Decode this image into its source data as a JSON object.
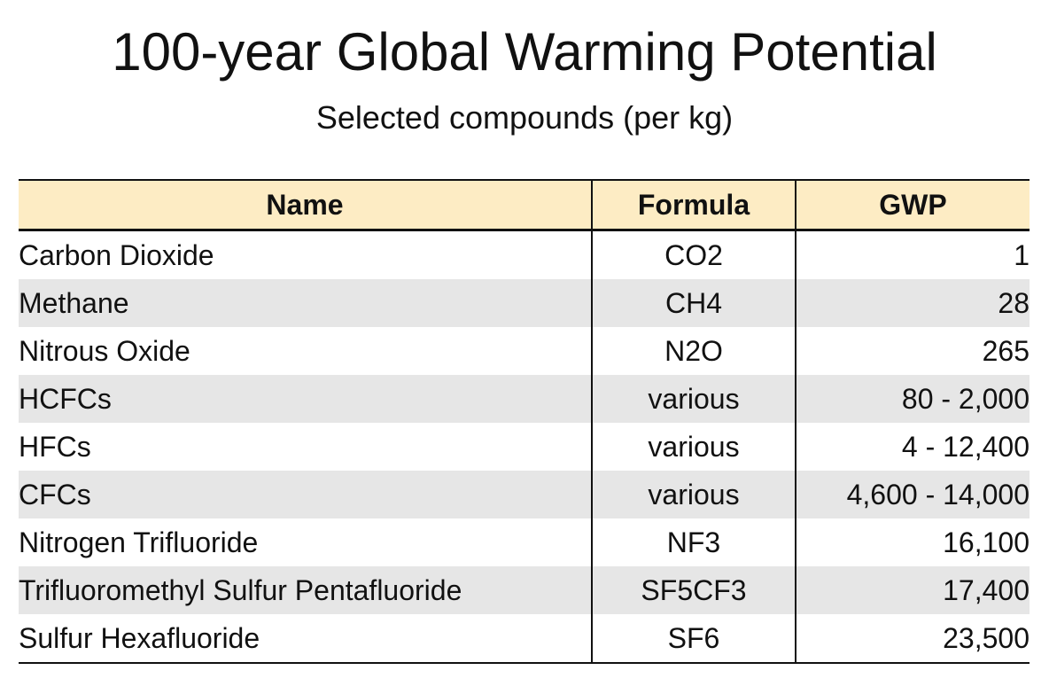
{
  "chart_data": {
    "type": "table",
    "title": "100-year Global Warming Potential",
    "subtitle": "Selected compounds (per kg)",
    "columns": [
      "Name",
      "Formula",
      "GWP"
    ],
    "rows": [
      {
        "name": "Carbon Dioxide",
        "formula": "CO2",
        "gwp": "1"
      },
      {
        "name": "Methane",
        "formula": "CH4",
        "gwp": "28"
      },
      {
        "name": "Nitrous Oxide",
        "formula": "N2O",
        "gwp": "265"
      },
      {
        "name": "HCFCs",
        "formula": "various",
        "gwp": "80 - 2,000"
      },
      {
        "name": "HFCs",
        "formula": "various",
        "gwp": "4 - 12,400"
      },
      {
        "name": "CFCs",
        "formula": "various",
        "gwp": "4,600 - 14,000"
      },
      {
        "name": "Nitrogen Trifluoride",
        "formula": "NF3",
        "gwp": "16,100"
      },
      {
        "name": "Trifluoromethyl Sulfur Pentafluoride",
        "formula": "SF5CF3",
        "gwp": "17,400"
      },
      {
        "name": "Sulfur Hexafluoride",
        "formula": "SF6",
        "gwp": "23,500"
      }
    ],
    "header_color": "#fdecc4",
    "band_color": "#e6e6e6"
  }
}
